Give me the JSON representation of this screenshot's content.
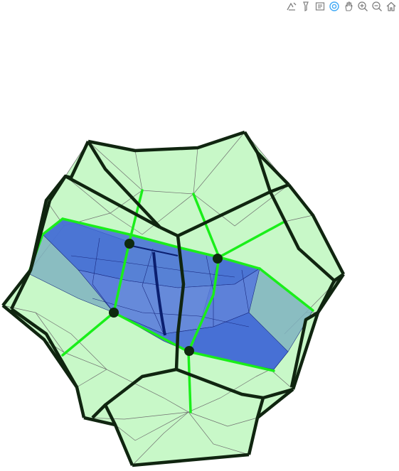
{
  "toolbar": {
    "buttons": [
      {
        "id": "download-plot",
        "icon": "camera-icon"
      },
      {
        "id": "zoom",
        "icon": "zoom-icon"
      },
      {
        "id": "pan",
        "icon": "pan-icon"
      },
      {
        "id": "orbit-rotation",
        "icon": "orbit-icon",
        "active": true
      },
      {
        "id": "turntable",
        "icon": "turntable-icon"
      },
      {
        "id": "zoom-in",
        "icon": "zoom-in-icon"
      },
      {
        "id": "zoom-out",
        "icon": "zoom-out-icon"
      },
      {
        "id": "reset-camera",
        "icon": "home-icon"
      }
    ],
    "icon_color": "#7f7f7f",
    "active_color": "#3fa9f5"
  },
  "scene": {
    "colors": {
      "outer_fill": "#b6f5b6",
      "outer_edge": "#102510",
      "wire": "#707070",
      "inner_fill": "#3b63d8",
      "inner_band": "#7fb3c0",
      "inner_edge": "#1a2a80",
      "highlight": "#1aee1a"
    }
  }
}
